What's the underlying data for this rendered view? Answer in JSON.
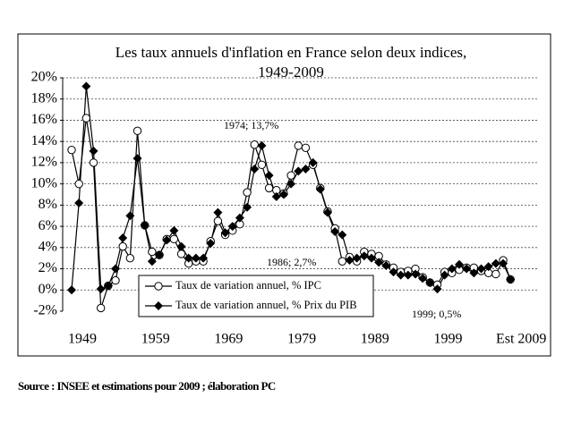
{
  "chart_data": {
    "type": "line",
    "title": [
      "Les taux annuels d'inflation en France selon deux indices,",
      "1949-2009"
    ],
    "categories": [
      "1949",
      null,
      null,
      null,
      null,
      null,
      null,
      null,
      null,
      null,
      "1959",
      null,
      null,
      null,
      null,
      null,
      null,
      null,
      null,
      null,
      "1969",
      null,
      null,
      null,
      null,
      null,
      null,
      null,
      null,
      null,
      "1979",
      null,
      null,
      null,
      null,
      null,
      null,
      null,
      null,
      null,
      "1989",
      null,
      null,
      null,
      null,
      null,
      null,
      null,
      null,
      null,
      "1999",
      null,
      null,
      null,
      null,
      null,
      null,
      null,
      null,
      null,
      "Est 2009"
    ],
    "series": [
      {
        "name": "Taux de variation annuel, % IPC",
        "color": "#000000",
        "marker": "circle",
        "values": [
          13.2,
          10.0,
          16.2,
          12.0,
          -1.7,
          0.4,
          0.9,
          4.1,
          3.0,
          15.0,
          6.1,
          3.6,
          3.3,
          4.8,
          4.8,
          3.4,
          2.5,
          2.7,
          2.7,
          4.6,
          6.5,
          5.2,
          5.6,
          6.2,
          9.2,
          13.7,
          11.8,
          9.6,
          9.4,
          9.1,
          10.8,
          13.6,
          13.4,
          11.8,
          9.6,
          7.4,
          5.8,
          2.7,
          3.1,
          2.7,
          3.6,
          3.4,
          3.2,
          2.4,
          2.1,
          1.7,
          1.8,
          2.0,
          1.2,
          0.7,
          0.5,
          1.7,
          1.6,
          1.9,
          2.1,
          2.1,
          1.8,
          1.6,
          1.5,
          2.8,
          1.0
        ]
      },
      {
        "name": "Taux de variation annuel, % Prix du PIB",
        "color": "#000000",
        "marker": "diamond",
        "values": [
          0.0,
          8.2,
          19.2,
          13.1,
          0.1,
          0.4,
          2.0,
          4.9,
          7.0,
          12.4,
          6.1,
          2.7,
          3.3,
          4.7,
          5.6,
          4.1,
          3.0,
          3.0,
          3.0,
          4.4,
          7.3,
          5.4,
          6.0,
          6.8,
          7.8,
          11.4,
          13.6,
          10.8,
          8.8,
          9.0,
          10.0,
          11.2,
          11.4,
          12.0,
          9.5,
          7.3,
          5.5,
          5.2,
          2.8,
          3.0,
          3.2,
          3.0,
          2.6,
          2.3,
          1.7,
          1.4,
          1.4,
          1.5,
          1.1,
          0.7,
          0.1,
          1.4,
          2.0,
          2.4,
          2.0,
          1.6,
          2.0,
          2.2,
          2.5,
          2.5,
          1.0
        ]
      }
    ],
    "ylim": [
      -2,
      20
    ],
    "yticks": [
      {
        "value": -2,
        "label": "-2%"
      },
      {
        "value": 0,
        "label": "0%"
      },
      {
        "value": 2,
        "label": "2%"
      },
      {
        "value": 4,
        "label": "4%"
      },
      {
        "value": 6,
        "label": "6%"
      },
      {
        "value": 8,
        "label": "8%"
      },
      {
        "value": 10,
        "label": "10%"
      },
      {
        "value": 12,
        "label": "12%"
      },
      {
        "value": 14,
        "label": "14%"
      },
      {
        "value": 16,
        "label": "16%"
      },
      {
        "value": 18,
        "label": "18%"
      },
      {
        "value": 20,
        "label": "20%"
      }
    ],
    "grid": true,
    "annotations": [
      "1974; 13,7%",
      "1986; 2,7%",
      "1999; 0,5%"
    ]
  },
  "source": "Source : INSEE et estimations pour 2009 ; élaboration PC"
}
